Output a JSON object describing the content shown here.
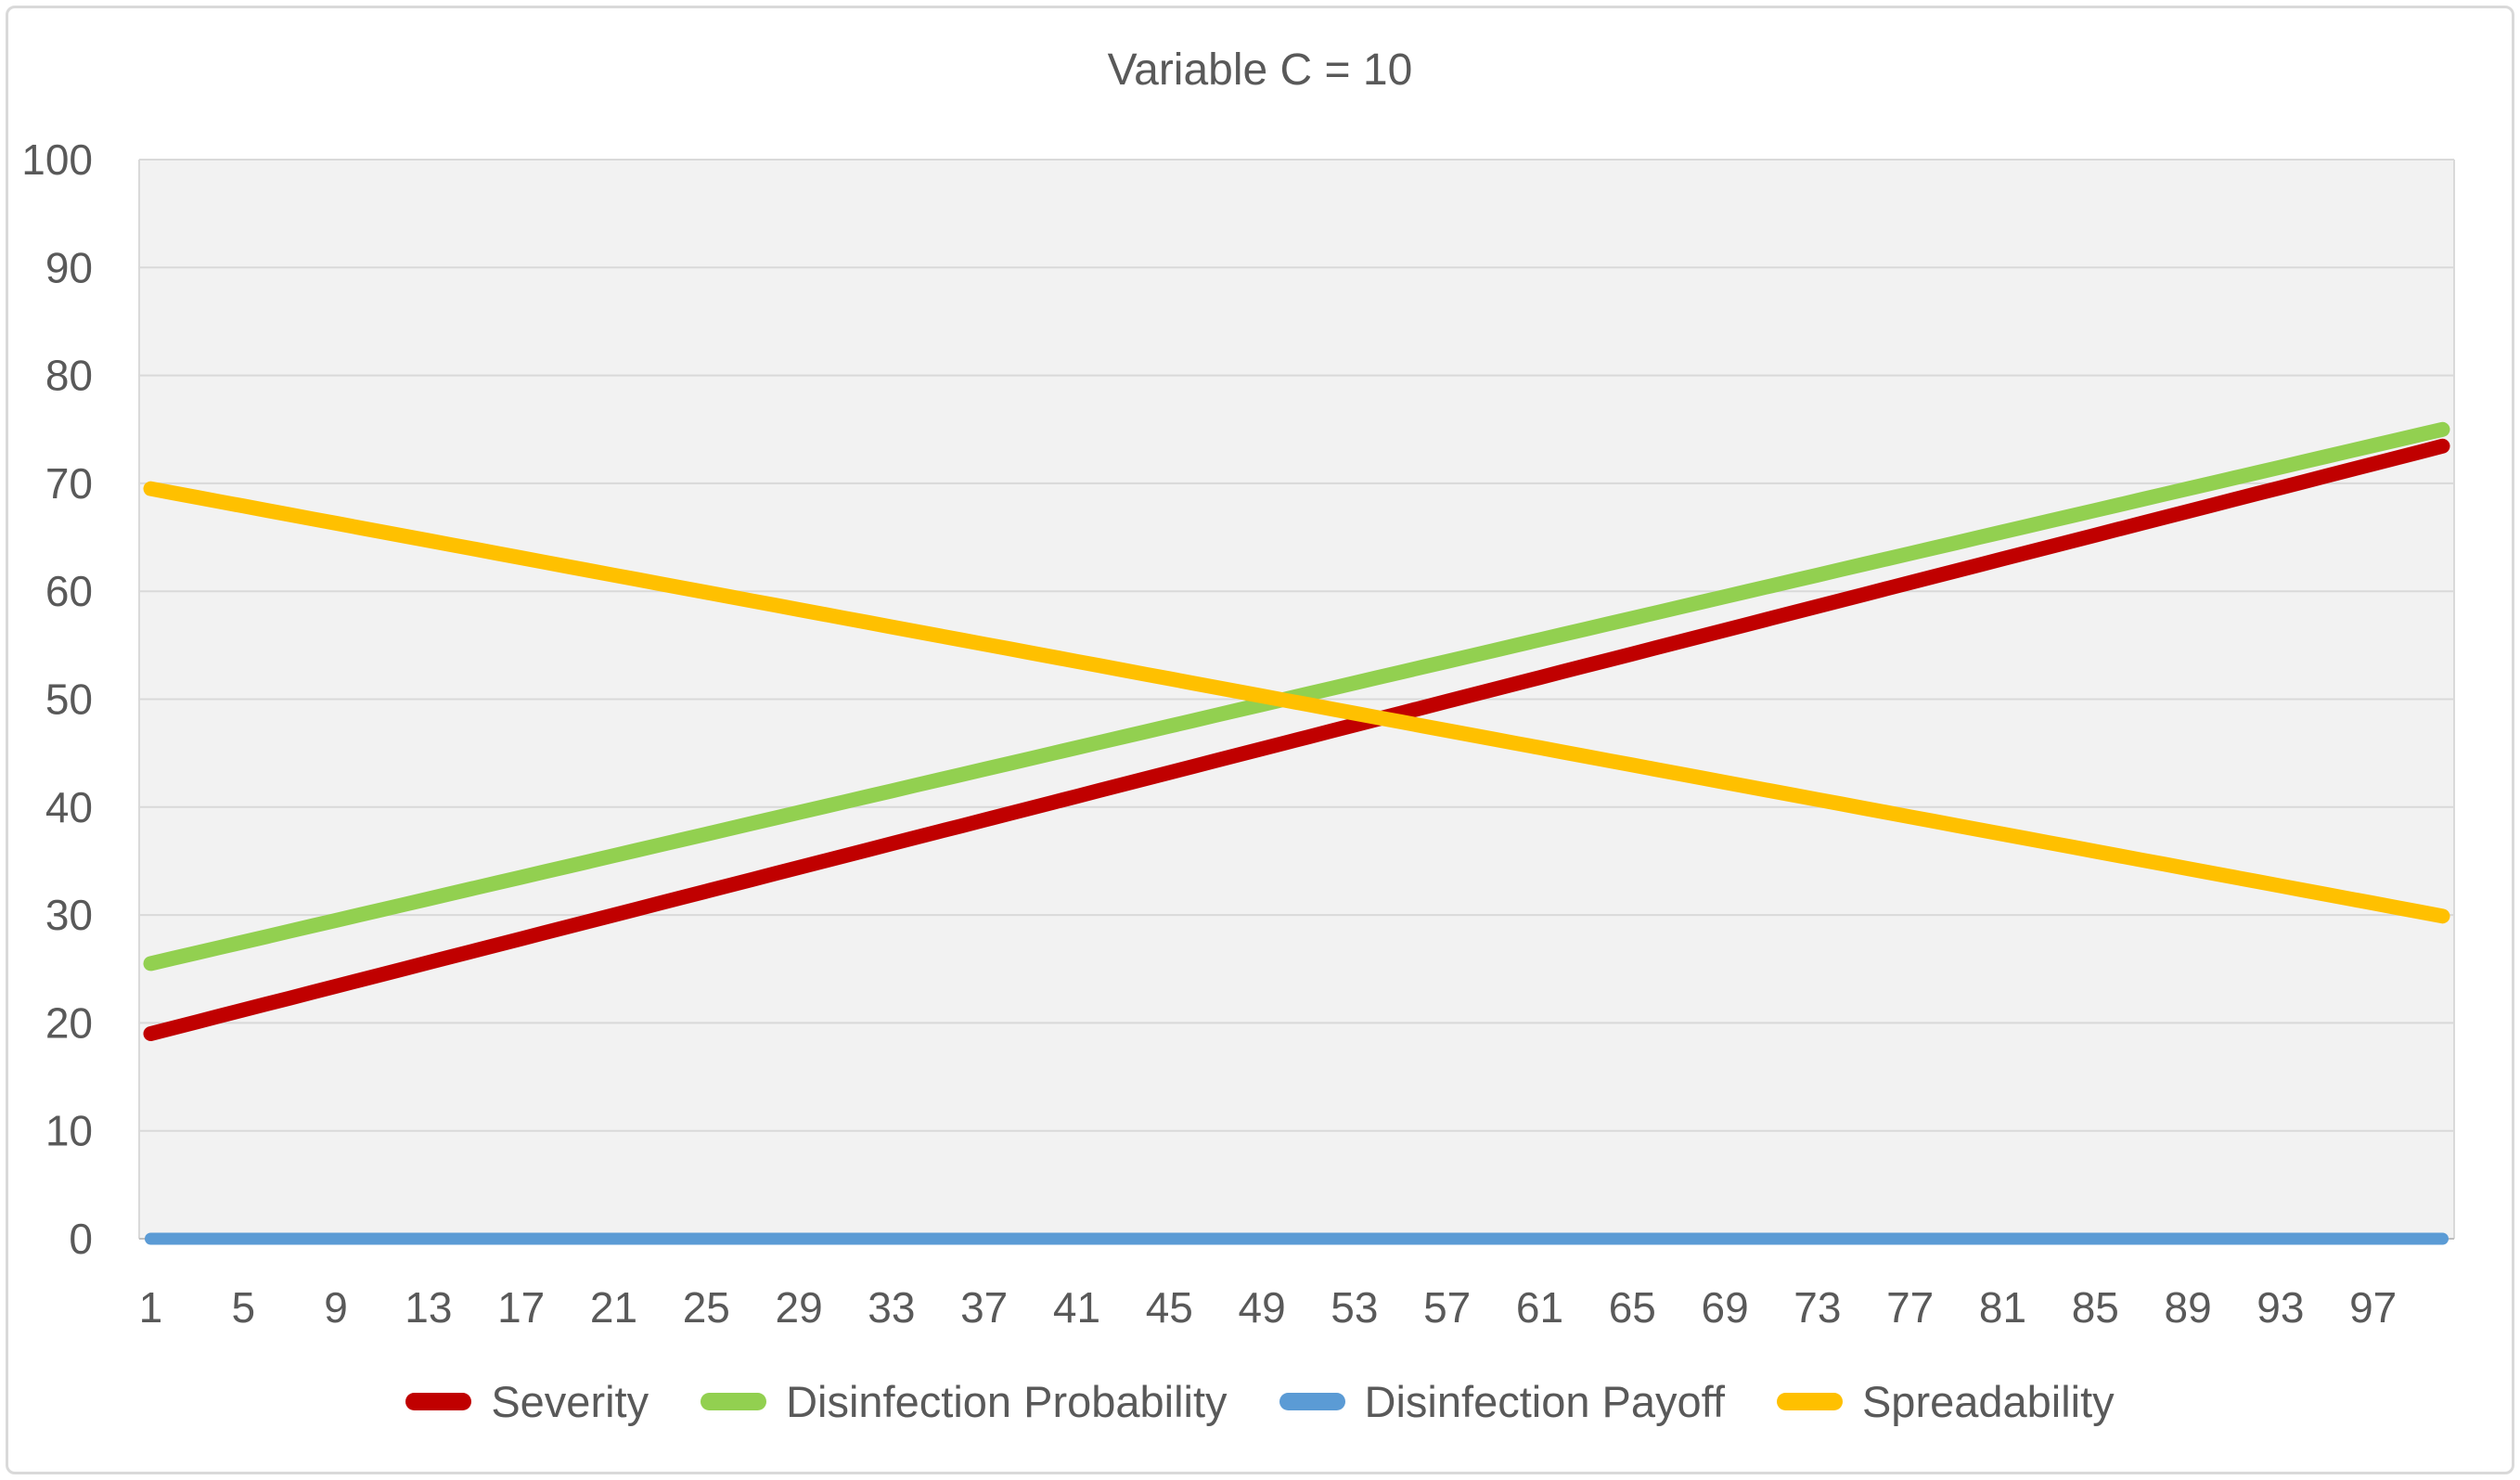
{
  "colors": {
    "plot_background": "#F2F2F2",
    "gridline": "#D9D9D9",
    "axis_line": "#BFBFBF",
    "text": "#595959",
    "frame_border": "#D9D9D9"
  },
  "chart_data": {
    "type": "line",
    "title": "Variable C = 10",
    "xlabel": "",
    "ylabel": "",
    "ylim": [
      0,
      100
    ],
    "y_ticks": [
      0,
      10,
      20,
      30,
      40,
      50,
      60,
      70,
      80,
      90,
      100
    ],
    "grid": true,
    "legend_position": "bottom",
    "x": [
      1,
      2,
      3,
      4,
      5,
      6,
      7,
      8,
      9,
      10,
      11,
      12,
      13,
      14,
      15,
      16,
      17,
      18,
      19,
      20,
      21,
      22,
      23,
      24,
      25,
      26,
      27,
      28,
      29,
      30,
      31,
      32,
      33,
      34,
      35,
      36,
      37,
      38,
      39,
      40,
      41,
      42,
      43,
      44,
      45,
      46,
      47,
      48,
      49,
      50,
      51,
      52,
      53,
      54,
      55,
      56,
      57,
      58,
      59,
      60,
      61,
      62,
      63,
      64,
      65,
      66,
      67,
      68,
      69,
      70,
      71,
      72,
      73,
      74,
      75,
      76,
      77,
      78,
      79,
      80,
      81,
      82,
      83,
      84,
      85,
      86,
      87,
      88,
      89,
      90,
      91,
      92,
      93,
      94,
      95,
      96,
      97,
      98,
      99,
      100
    ],
    "x_tick_labels": [
      "1",
      "5",
      "9",
      "13",
      "17",
      "21",
      "25",
      "29",
      "33",
      "37",
      "41",
      "45",
      "49",
      "53",
      "57",
      "61",
      "65",
      "69",
      "73",
      "77",
      "81",
      "85",
      "89",
      "93",
      "97"
    ],
    "series": [
      {
        "name": "Severity",
        "color": "#C00000",
        "line_width": 16,
        "values": [
          19,
          19.55,
          20.1,
          20.65,
          21.2,
          21.75,
          22.3,
          22.85,
          23.4,
          23.95,
          24.5,
          25.05,
          25.6,
          26.15,
          26.7,
          27.25,
          27.8,
          28.35,
          28.9,
          29.45,
          30,
          30.55,
          31.1,
          31.65,
          32.2,
          32.75,
          33.3,
          33.85,
          34.4,
          34.95,
          35.5,
          36.05,
          36.6,
          37.15,
          37.7,
          38.25,
          38.8,
          39.35,
          39.9,
          40.45,
          41,
          41.55,
          42.1,
          42.65,
          43.2,
          43.75,
          44.3,
          44.85,
          45.4,
          45.95,
          46.5,
          47.05,
          47.6,
          48.15,
          48.7,
          49.25,
          49.8,
          50.35,
          50.9,
          51.45,
          52,
          52.55,
          53.1,
          53.65,
          54.2,
          54.75,
          55.3,
          55.85,
          56.4,
          56.95,
          57.5,
          58.05,
          58.6,
          59.15,
          59.7,
          60.25,
          60.8,
          61.35,
          61.9,
          62.45,
          63,
          63.55,
          64.1,
          64.65,
          65.2,
          65.75,
          66.3,
          66.85,
          67.4,
          67.95,
          68.5,
          69.05,
          69.6,
          70.15,
          70.7,
          71.25,
          71.8,
          72.35,
          72.9,
          73.45
        ]
      },
      {
        "name": "Disinfection Probability",
        "color": "#92D050",
        "line_width": 16,
        "values": [
          25.5,
          26,
          26.5,
          27,
          27.5,
          28,
          28.5,
          29,
          29.5,
          30,
          30.5,
          31,
          31.5,
          32,
          32.5,
          33,
          33.5,
          34,
          34.5,
          35,
          35.5,
          36,
          36.5,
          37,
          37.5,
          38,
          38.5,
          39,
          39.5,
          40,
          40.5,
          41,
          41.5,
          42,
          42.5,
          43,
          43.5,
          44,
          44.5,
          45,
          45.5,
          46,
          46.5,
          47,
          47.5,
          48,
          48.5,
          49,
          49.5,
          50,
          50.5,
          51,
          51.5,
          52,
          52.5,
          53,
          53.5,
          54,
          54.5,
          55,
          55.5,
          56,
          56.5,
          57,
          57.5,
          58,
          58.5,
          59,
          59.5,
          60,
          60.5,
          61,
          61.5,
          62,
          62.5,
          63,
          63.5,
          64,
          64.5,
          65,
          65.5,
          66,
          66.5,
          67,
          67.5,
          68,
          68.5,
          69,
          69.5,
          70,
          70.5,
          71,
          71.5,
          72,
          72.5,
          73,
          73.5,
          74,
          74.5,
          75
        ]
      },
      {
        "name": "Disinfection Payoff",
        "color": "#5B9BD5",
        "line_width": 13,
        "values": [
          0,
          0,
          0,
          0,
          0,
          0,
          0,
          0,
          0,
          0,
          0,
          0,
          0,
          0,
          0,
          0,
          0,
          0,
          0,
          0,
          0,
          0,
          0,
          0,
          0,
          0,
          0,
          0,
          0,
          0,
          0,
          0,
          0,
          0,
          0,
          0,
          0,
          0,
          0,
          0,
          0,
          0,
          0,
          0,
          0,
          0,
          0,
          0,
          0,
          0,
          0,
          0,
          0,
          0,
          0,
          0,
          0,
          0,
          0,
          0,
          0,
          0,
          0,
          0,
          0,
          0,
          0,
          0,
          0,
          0,
          0,
          0,
          0,
          0,
          0,
          0,
          0,
          0,
          0,
          0,
          0,
          0,
          0,
          0,
          0,
          0,
          0,
          0,
          0,
          0,
          0,
          0,
          0,
          0,
          0,
          0,
          0,
          0,
          0,
          0
        ]
      },
      {
        "name": "Spreadability",
        "color": "#FFC000",
        "line_width": 16,
        "values": [
          69.5,
          69.1,
          68.7,
          68.3,
          67.9,
          67.5,
          67.1,
          66.7,
          66.3,
          65.9,
          65.5,
          65.1,
          64.7,
          64.3,
          63.9,
          63.5,
          63.1,
          62.7,
          62.3,
          61.9,
          61.5,
          61.1,
          60.7,
          60.3,
          59.9,
          59.5,
          59.1,
          58.7,
          58.3,
          57.9,
          57.5,
          57.1,
          56.7,
          56.3,
          55.9,
          55.5,
          55.1,
          54.7,
          54.3,
          53.9,
          53.5,
          53.1,
          52.7,
          52.3,
          51.9,
          51.5,
          51.1,
          50.7,
          50.3,
          49.9,
          49.5,
          49.1,
          48.7,
          48.3,
          47.9,
          47.5,
          47.1,
          46.7,
          46.3,
          45.9,
          45.5,
          45.1,
          44.7,
          44.3,
          43.9,
          43.5,
          43.1,
          42.7,
          42.3,
          41.9,
          41.5,
          41.1,
          40.7,
          40.3,
          39.9,
          39.5,
          39.1,
          38.7,
          38.3,
          37.9,
          37.5,
          37.1,
          36.7,
          36.3,
          35.9,
          35.5,
          35.1,
          34.7,
          34.3,
          33.9,
          33.5,
          33.1,
          32.7,
          32.3,
          31.9,
          31.5,
          31.1,
          30.7,
          30.3,
          29.9
        ]
      }
    ]
  }
}
